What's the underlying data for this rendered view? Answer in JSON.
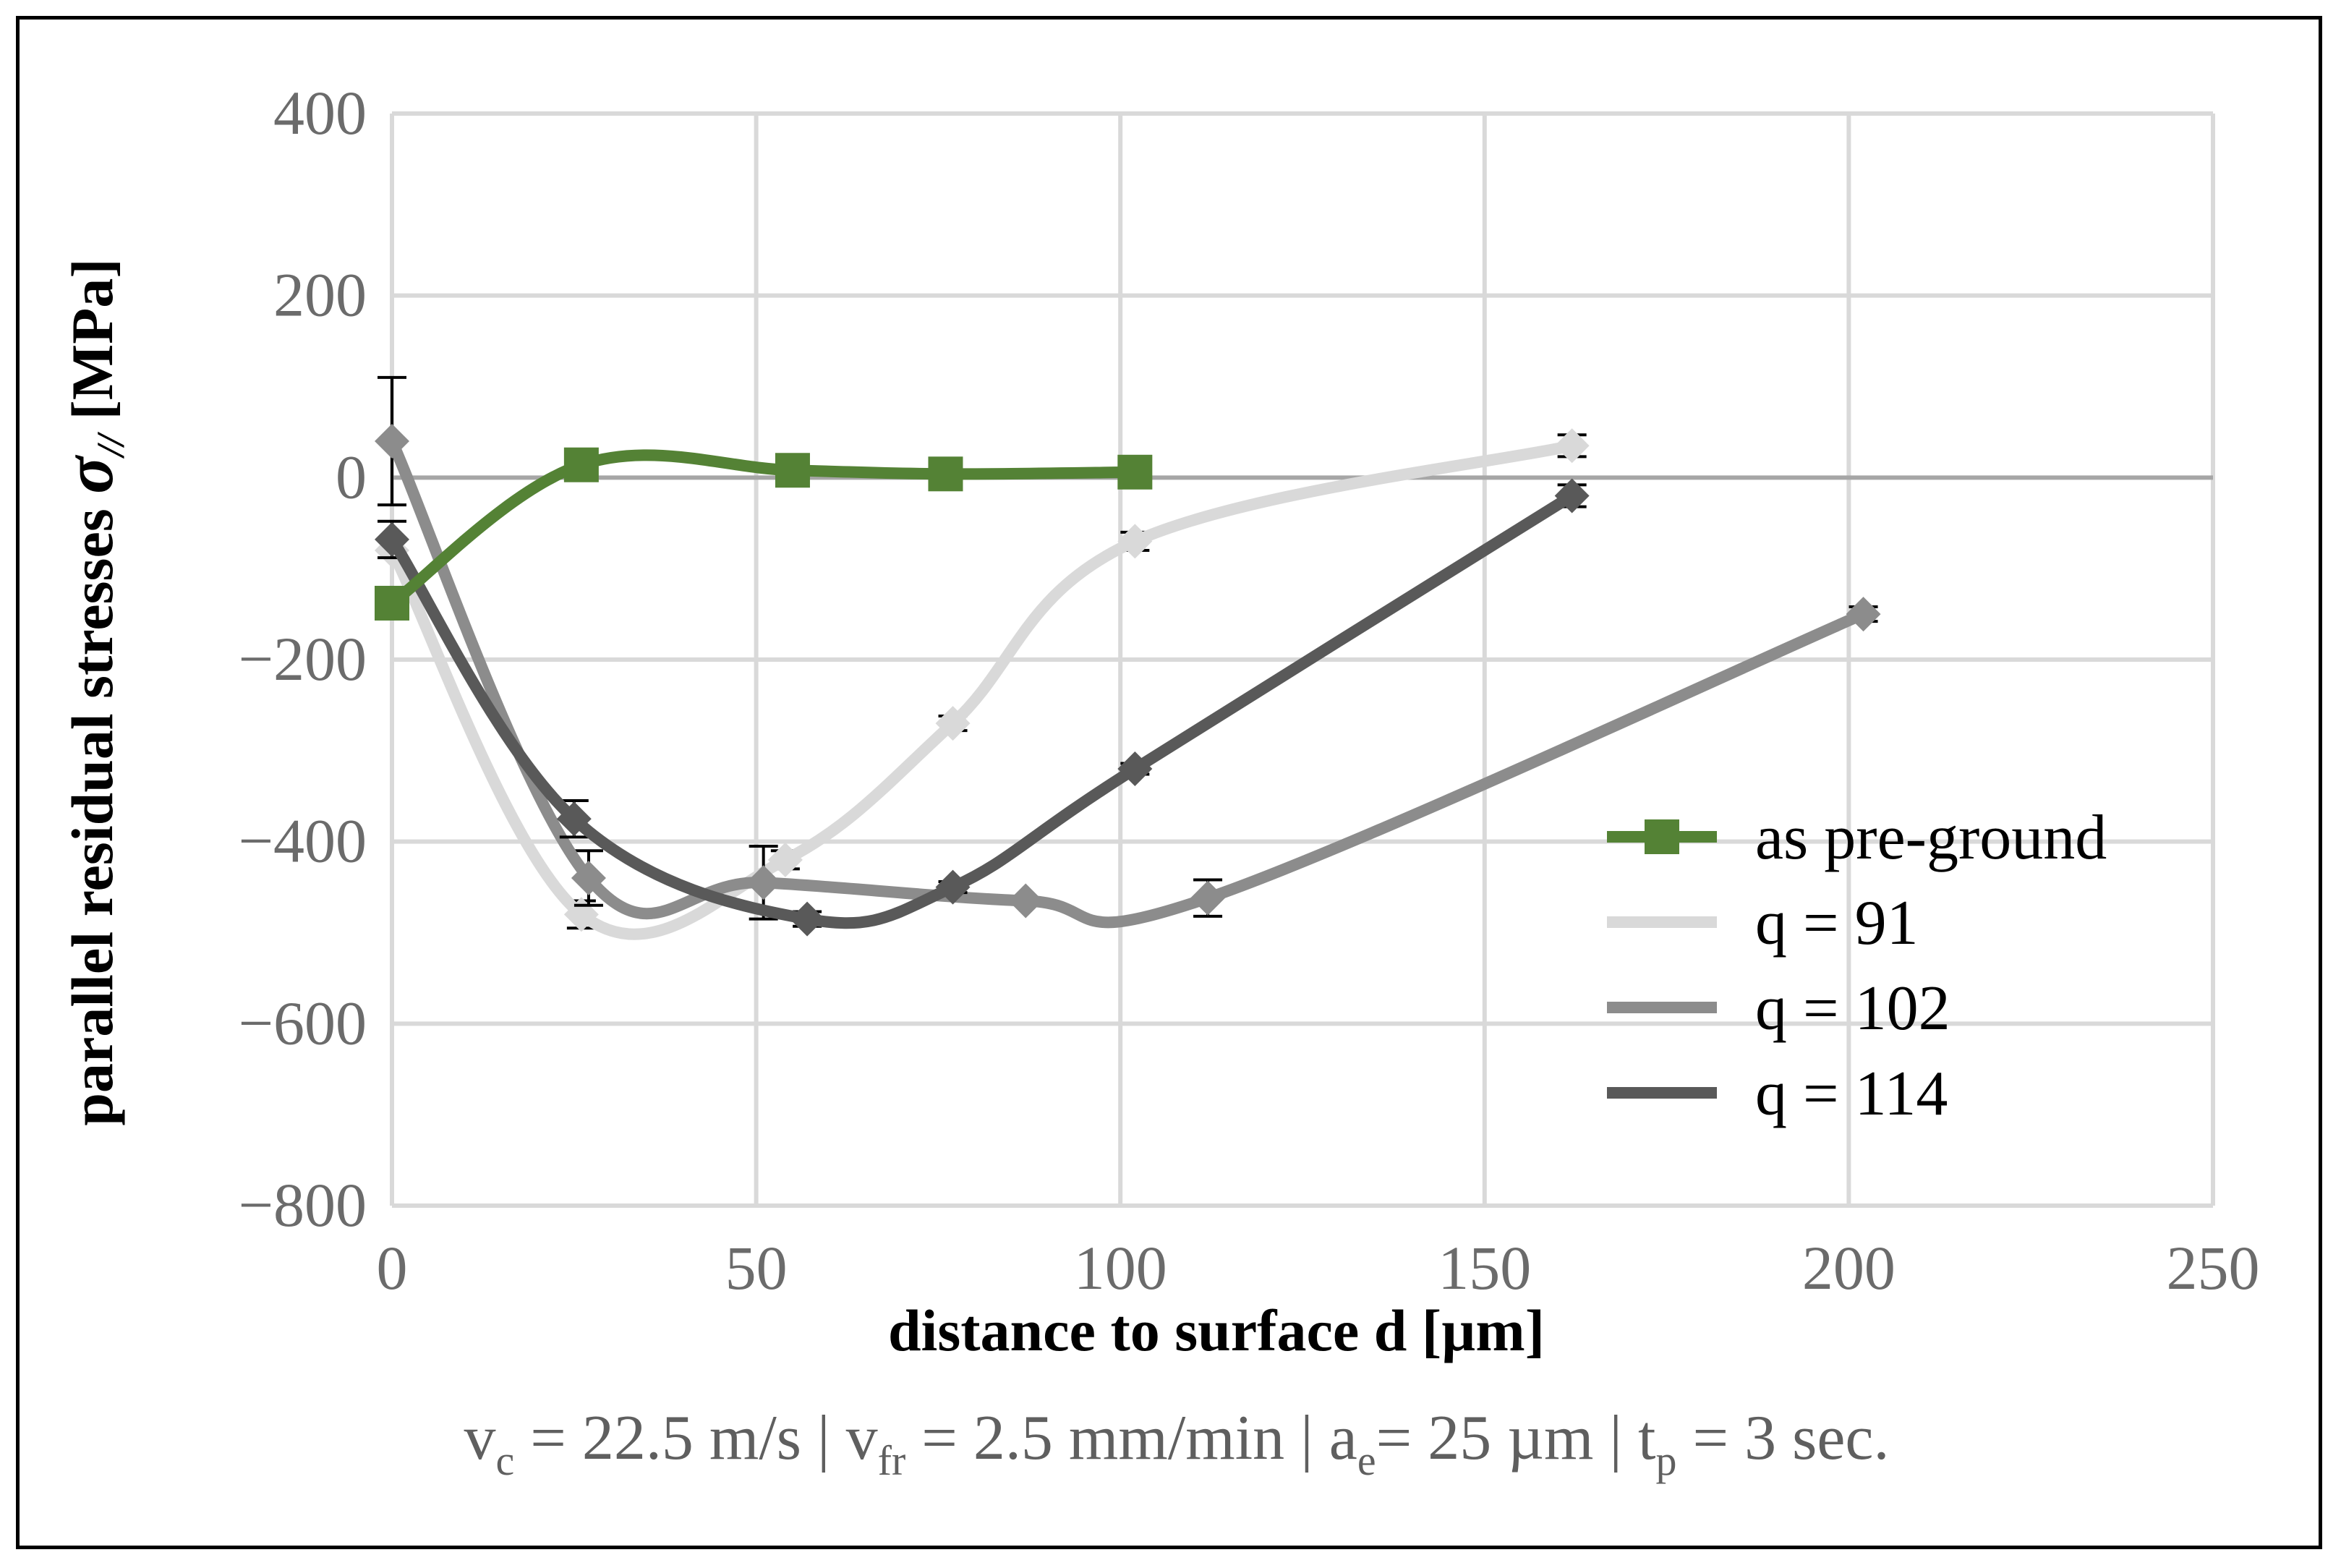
{
  "chart_data": {
    "type": "line",
    "xlabel": "distance to surface d [µm]",
    "ylabel_main": "parallel residual stresses",
    "ylabel_symbol": "σ",
    "ylabel_subscript": "//",
    "ylabel_unit": "[MPa]",
    "xlim": [
      0,
      250
    ],
    "ylim": [
      -800,
      400
    ],
    "x_ticks": [
      0,
      50,
      100,
      150,
      200,
      250
    ],
    "y_ticks": [
      400,
      200,
      0,
      -200,
      -400,
      -600,
      -800
    ],
    "y_tick_labels": [
      "400",
      "200",
      "0",
      "−200",
      "−400",
      "−600",
      "−800"
    ],
    "grid": true,
    "legend_position": "bottom-right",
    "series": [
      {
        "name": "as pre-ground",
        "color": "#548235",
        "marker": "square",
        "points": [
          [
            0,
            -138
          ],
          [
            26,
            14
          ],
          [
            55,
            8
          ],
          [
            76,
            4
          ],
          [
            102,
            6
          ]
        ],
        "errors": []
      },
      {
        "name": "q = 91",
        "color": "#d9d9d9",
        "marker": "diamond",
        "points": [
          [
            0,
            -80
          ],
          [
            26,
            -480
          ],
          [
            54,
            -420
          ],
          [
            77,
            -270
          ],
          [
            102,
            -70
          ],
          [
            162,
            35
          ]
        ],
        "errors": [
          [
            26,
            15
          ],
          [
            54,
            10
          ],
          [
            77,
            8
          ],
          [
            102,
            10
          ],
          [
            162,
            12
          ]
        ]
      },
      {
        "name": "q = 102",
        "color": "#8c8c8c",
        "marker": "diamond",
        "points": [
          [
            0,
            40
          ],
          [
            27,
            -440
          ],
          [
            51,
            -445
          ],
          [
            87,
            -465
          ],
          [
            112,
            -462
          ],
          [
            202,
            -150
          ]
        ],
        "errors": [
          [
            0,
            70
          ],
          [
            27,
            30
          ],
          [
            51,
            40
          ],
          [
            112,
            20
          ],
          [
            202,
            8
          ]
        ]
      },
      {
        "name": "q = 114",
        "color": "#595959",
        "marker": "diamond",
        "points": [
          [
            0,
            -68
          ],
          [
            25,
            -375
          ],
          [
            57,
            -485
          ],
          [
            77,
            -450
          ],
          [
            102,
            -320
          ],
          [
            162,
            -20
          ]
        ],
        "errors": [
          [
            0,
            20
          ],
          [
            25,
            20
          ],
          [
            57,
            8
          ],
          [
            77,
            6
          ],
          [
            102,
            6
          ],
          [
            162,
            12
          ]
        ]
      }
    ]
  },
  "caption": {
    "v": "v",
    "vc_sub": "c",
    "vc_val": " = 22.5 m/s | v",
    "vfr_sub": "fr",
    "vfr_val": " = 2.5 mm/min | a",
    "ae_sub": "e",
    "ae_val": "= 25 µm | t",
    "tp_sub": "p",
    "tp_val": " = 3 sec."
  }
}
